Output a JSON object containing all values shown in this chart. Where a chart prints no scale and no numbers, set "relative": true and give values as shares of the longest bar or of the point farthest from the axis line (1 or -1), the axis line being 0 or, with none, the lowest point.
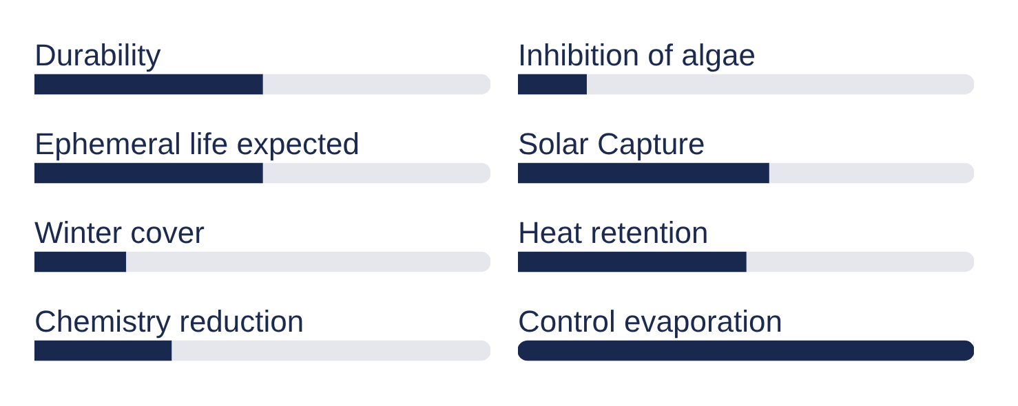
{
  "chart_data": [
    {
      "type": "bar",
      "orientation": "horizontal",
      "relative": true,
      "stacked": true,
      "categories": [
        "Durability",
        "Ephemeral life expected",
        "Winter cover",
        "Chemistry reduction"
      ],
      "series": [
        {
          "color": "#18284f",
          "values": [
            0.5,
            0.5,
            0.2,
            0.3
          ]
        },
        {
          "color": "#e6e7ec",
          "values": [
            0.5,
            0.5,
            0.8,
            0.7
          ]
        }
      ]
    },
    {
      "type": "bar",
      "orientation": "horizontal",
      "relative": true,
      "stacked": true,
      "categories": [
        "Inhibition of algae",
        "Solar Capture",
        "Heat retention",
        "Control evaporation"
      ],
      "series": [
        {
          "color": "#18284f",
          "values": [
            0.15,
            0.55,
            0.5,
            1
          ]
        },
        {
          "color": "#e6e7ec",
          "values": [
            0.85,
            0.45,
            0.5,
            0
          ]
        }
      ]
    }
  ]
}
